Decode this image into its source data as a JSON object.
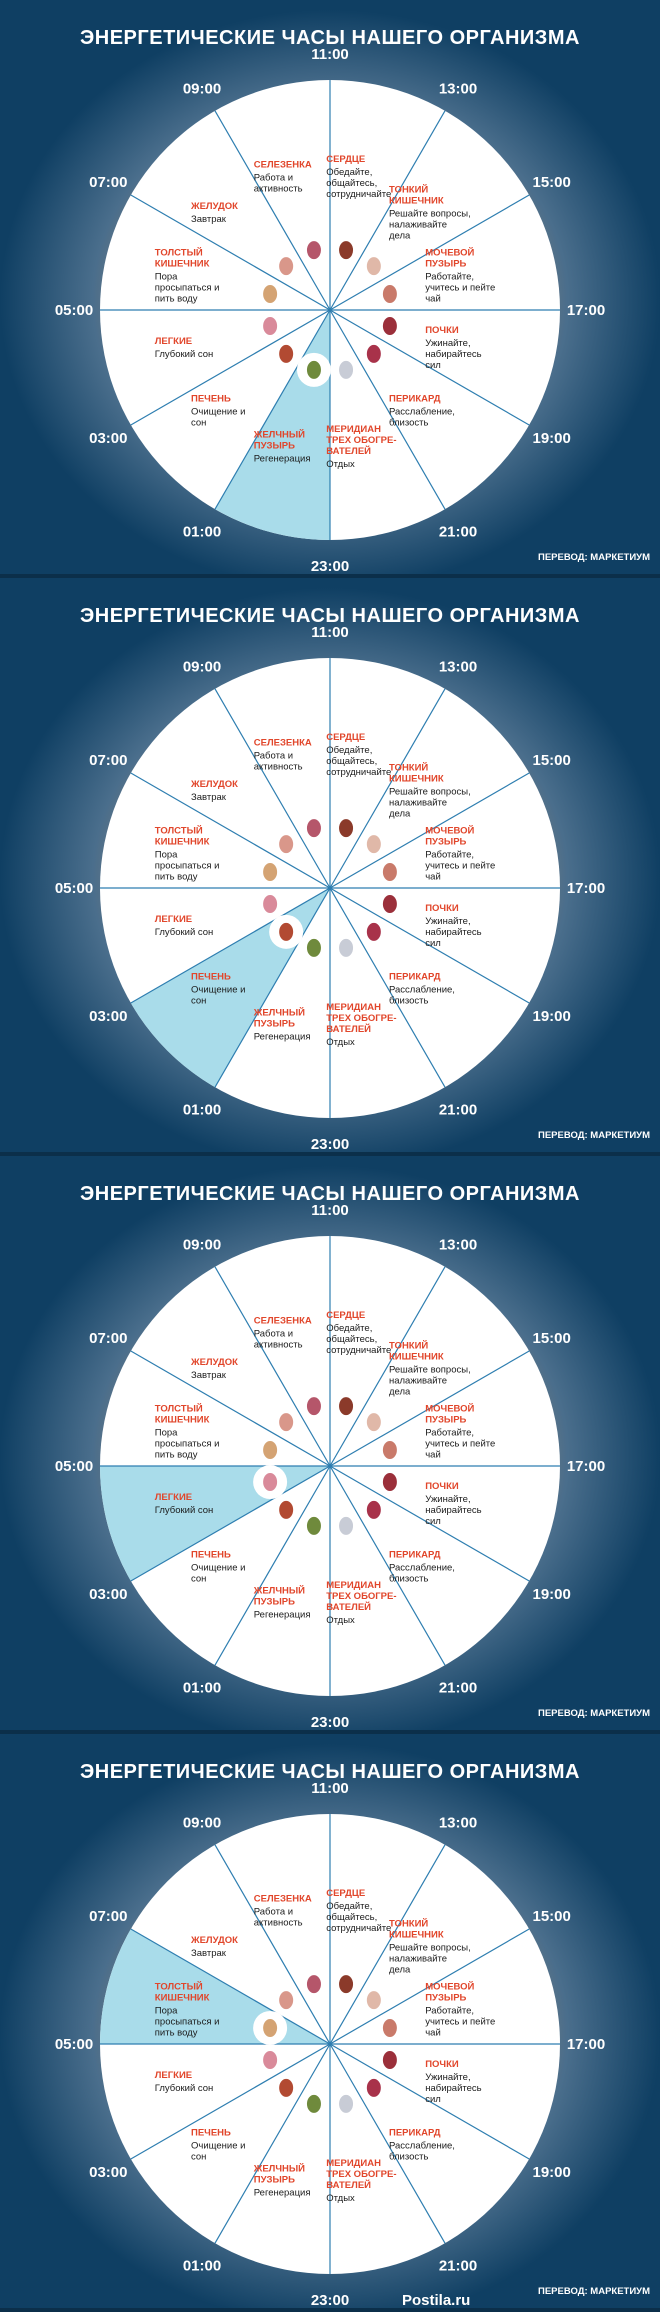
{
  "title": "ЭНЕРГЕТИЧЕСКИЕ ЧАСЫ НАШЕГО ОРГАНИЗМА",
  "credit": "ПЕРЕВОД: МАРКЕТИУМ",
  "watermark": "Postila.ru",
  "colors": {
    "accent_red": "#e1462b",
    "highlight_blue": "#a9dcea",
    "divider": "#2e7eb0"
  },
  "hours": [
    "11:00",
    "13:00",
    "15:00",
    "17:00",
    "19:00",
    "21:00",
    "23:00",
    "01:00",
    "03:00",
    "05:00",
    "07:00",
    "09:00"
  ],
  "sectors": [
    {
      "name_lines": [
        "СЕРДЦЕ"
      ],
      "desc_lines": [
        "Обедайте,",
        "общайтесь,",
        "сотрудничайте"
      ],
      "icon": "heart-icon"
    },
    {
      "name_lines": [
        "ТОНКИЙ",
        "КИШЕЧНИК"
      ],
      "desc_lines": [
        "Решайте вопросы,",
        "налаживайте",
        "дела"
      ],
      "icon": "small-intestine-icon"
    },
    {
      "name_lines": [
        "МОЧЕВОЙ",
        "ПУЗЫРЬ"
      ],
      "desc_lines": [
        "Работайте,",
        "учитесь и пейте",
        "чай"
      ],
      "icon": "bladder-icon"
    },
    {
      "name_lines": [
        "ПОЧКИ"
      ],
      "desc_lines": [
        "Ужинайте,",
        "набирайтесь",
        "сил"
      ],
      "icon": "kidneys-icon"
    },
    {
      "name_lines": [
        "ПЕРИКАРД"
      ],
      "desc_lines": [
        "Расслабление,",
        "близость"
      ],
      "icon": "pericardium-icon"
    },
    {
      "name_lines": [
        "МЕРИДИАН",
        "ТРЕХ ОБОГРЕ-",
        "ВАТЕЛЕЙ"
      ],
      "desc_lines": [
        "Отдых"
      ],
      "icon": "triple-warmer-icon"
    },
    {
      "name_lines": [
        "ЖЕЛЧНЫЙ",
        "ПУЗЫРЬ"
      ],
      "desc_lines": [
        "Регенерация"
      ],
      "icon": "gallbladder-icon"
    },
    {
      "name_lines": [
        "ПЕЧЕНЬ"
      ],
      "desc_lines": [
        "Очищение и",
        "сон"
      ],
      "icon": "liver-icon"
    },
    {
      "name_lines": [
        "ЛЕГКИЕ"
      ],
      "desc_lines": [
        "Глубокий сон"
      ],
      "icon": "lungs-icon"
    },
    {
      "name_lines": [
        "ТОЛСТЫЙ",
        "КИШЕЧНИК"
      ],
      "desc_lines": [
        "Пора",
        "просыпаться и",
        "пить воду"
      ],
      "icon": "large-intestine-icon"
    },
    {
      "name_lines": [
        "ЖЕЛУДОК"
      ],
      "desc_lines": [
        "Завтрак"
      ],
      "icon": "stomach-icon"
    },
    {
      "name_lines": [
        "СЕЛЕЗЕНКА"
      ],
      "desc_lines": [
        "Работа и",
        "активность"
      ],
      "icon": "spleen-icon"
    }
  ],
  "frames": [
    {
      "highlight_sector": 6
    },
    {
      "highlight_sector": 7
    },
    {
      "highlight_sector": 8
    },
    {
      "highlight_sector": 9
    }
  ]
}
